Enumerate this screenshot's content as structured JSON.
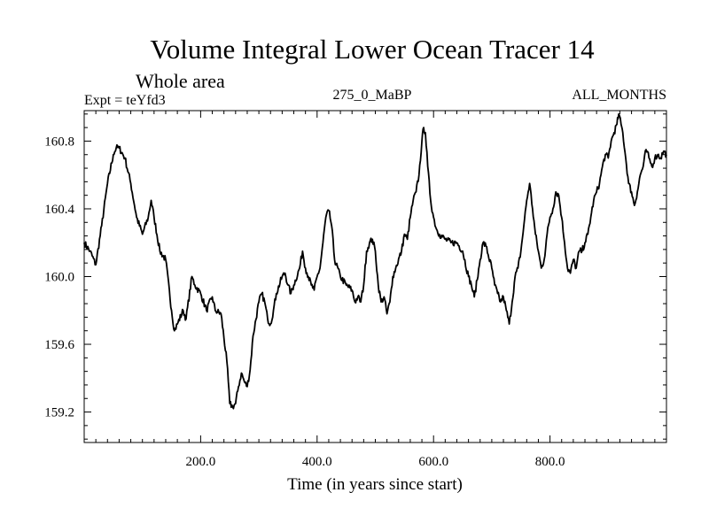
{
  "chart_data": {
    "type": "line",
    "title": "Volume Integral Lower Ocean Tracer 14",
    "subtitle": "Whole area",
    "experiment": "Expt = teYfd3",
    "period": "275_0_MaBP",
    "months": "ALL_MONTHS",
    "xlabel": "Time (in years since start)",
    "ylabel": "",
    "xlim": [
      0,
      1000
    ],
    "ylim": [
      159.02,
      160.98
    ],
    "xticks": [
      200,
      400,
      600,
      800
    ],
    "xtick_labels": [
      "200.0",
      "400.0",
      "600.0",
      "800.0"
    ],
    "yticks": [
      159.2,
      159.6,
      160.0,
      160.4,
      160.8
    ],
    "ytick_labels": [
      "159.2",
      "159.6",
      "160.0",
      "160.4",
      "160.8"
    ],
    "grid": false,
    "series": [
      {
        "name": "Tracer 14",
        "color": "#000000",
        "points": [
          [
            0,
            160.2
          ],
          [
            10,
            160.15
          ],
          [
            20,
            160.07
          ],
          [
            30,
            160.3
          ],
          [
            40,
            160.55
          ],
          [
            50,
            160.72
          ],
          [
            55,
            160.76
          ],
          [
            60,
            160.76
          ],
          [
            70,
            160.7
          ],
          [
            80,
            160.55
          ],
          [
            90,
            160.35
          ],
          [
            100,
            160.25
          ],
          [
            110,
            160.35
          ],
          [
            115,
            160.45
          ],
          [
            120,
            160.35
          ],
          [
            130,
            160.15
          ],
          [
            140,
            160.1
          ],
          [
            150,
            159.8
          ],
          [
            155,
            159.68
          ],
          [
            160,
            159.72
          ],
          [
            170,
            159.8
          ],
          [
            175,
            159.75
          ],
          [
            185,
            160.0
          ],
          [
            190,
            159.95
          ],
          [
            200,
            159.9
          ],
          [
            210,
            159.8
          ],
          [
            220,
            159.88
          ],
          [
            225,
            159.8
          ],
          [
            235,
            159.78
          ],
          [
            245,
            159.5
          ],
          [
            250,
            159.25
          ],
          [
            255,
            159.23
          ],
          [
            260,
            159.25
          ],
          [
            265,
            159.35
          ],
          [
            270,
            159.43
          ],
          [
            275,
            159.38
          ],
          [
            280,
            159.35
          ],
          [
            285,
            159.45
          ],
          [
            290,
            159.65
          ],
          [
            300,
            159.85
          ],
          [
            305,
            159.9
          ],
          [
            310,
            159.85
          ],
          [
            315,
            159.75
          ],
          [
            320,
            159.72
          ],
          [
            325,
            159.8
          ],
          [
            330,
            159.9
          ],
          [
            340,
            160.0
          ],
          [
            345,
            160.02
          ],
          [
            350,
            159.95
          ],
          [
            355,
            159.9
          ],
          [
            360,
            159.95
          ],
          [
            370,
            160.05
          ],
          [
            375,
            160.15
          ],
          [
            380,
            160.05
          ],
          [
            385,
            160.0
          ],
          [
            390,
            159.95
          ],
          [
            395,
            159.92
          ],
          [
            400,
            160.0
          ],
          [
            405,
            160.05
          ],
          [
            410,
            160.2
          ],
          [
            415,
            160.35
          ],
          [
            420,
            160.39
          ],
          [
            425,
            160.3
          ],
          [
            430,
            160.1
          ],
          [
            440,
            160.0
          ],
          [
            450,
            159.95
          ],
          [
            460,
            159.92
          ],
          [
            465,
            159.85
          ],
          [
            470,
            159.88
          ],
          [
            475,
            159.85
          ],
          [
            480,
            159.95
          ],
          [
            485,
            160.15
          ],
          [
            490,
            160.2
          ],
          [
            495,
            160.22
          ],
          [
            500,
            160.15
          ],
          [
            505,
            159.95
          ],
          [
            510,
            159.85
          ],
          [
            515,
            159.88
          ],
          [
            520,
            159.78
          ],
          [
            525,
            159.85
          ],
          [
            530,
            160.0
          ],
          [
            535,
            160.05
          ],
          [
            545,
            160.15
          ],
          [
            550,
            160.25
          ],
          [
            555,
            160.22
          ],
          [
            560,
            160.35
          ],
          [
            565,
            160.45
          ],
          [
            570,
            160.5
          ],
          [
            575,
            160.6
          ],
          [
            580,
            160.8
          ],
          [
            583,
            160.88
          ],
          [
            586,
            160.85
          ],
          [
            590,
            160.65
          ],
          [
            595,
            160.45
          ],
          [
            600,
            160.35
          ],
          [
            605,
            160.28
          ],
          [
            610,
            160.25
          ],
          [
            620,
            160.22
          ],
          [
            630,
            160.2
          ],
          [
            640,
            160.2
          ],
          [
            650,
            160.15
          ],
          [
            660,
            160.0
          ],
          [
            665,
            159.95
          ],
          [
            670,
            159.88
          ],
          [
            675,
            159.98
          ],
          [
            680,
            160.1
          ],
          [
            685,
            160.2
          ],
          [
            690,
            160.18
          ],
          [
            700,
            160.05
          ],
          [
            705,
            159.95
          ],
          [
            710,
            159.9
          ],
          [
            715,
            159.85
          ],
          [
            720,
            159.88
          ],
          [
            725,
            159.8
          ],
          [
            730,
            159.72
          ],
          [
            735,
            159.85
          ],
          [
            740,
            160.0
          ],
          [
            745,
            160.05
          ],
          [
            750,
            160.15
          ],
          [
            755,
            160.3
          ],
          [
            760,
            160.45
          ],
          [
            765,
            160.55
          ],
          [
            770,
            160.4
          ],
          [
            775,
            160.25
          ],
          [
            780,
            160.15
          ],
          [
            785,
            160.05
          ],
          [
            790,
            160.1
          ],
          [
            795,
            160.25
          ],
          [
            800,
            160.35
          ],
          [
            805,
            160.4
          ],
          [
            810,
            160.5
          ],
          [
            815,
            160.48
          ],
          [
            820,
            160.35
          ],
          [
            825,
            160.2
          ],
          [
            830,
            160.05
          ],
          [
            835,
            160.02
          ],
          [
            840,
            160.1
          ],
          [
            845,
            160.05
          ],
          [
            850,
            160.15
          ],
          [
            855,
            160.15
          ],
          [
            860,
            160.2
          ],
          [
            865,
            160.25
          ],
          [
            870,
            160.35
          ],
          [
            875,
            160.45
          ],
          [
            880,
            160.5
          ],
          [
            885,
            160.55
          ],
          [
            890,
            160.65
          ],
          [
            895,
            160.72
          ],
          [
            900,
            160.7
          ],
          [
            905,
            160.8
          ],
          [
            910,
            160.85
          ],
          [
            915,
            160.9
          ],
          [
            918,
            160.96
          ],
          [
            922,
            160.9
          ],
          [
            925,
            160.85
          ],
          [
            930,
            160.7
          ],
          [
            935,
            160.55
          ],
          [
            940,
            160.5
          ],
          [
            945,
            160.42
          ],
          [
            950,
            160.5
          ],
          [
            955,
            160.6
          ],
          [
            960,
            160.65
          ],
          [
            965,
            160.75
          ],
          [
            970,
            160.7
          ],
          [
            975,
            160.65
          ],
          [
            980,
            160.7
          ],
          [
            985,
            160.72
          ],
          [
            990,
            160.7
          ],
          [
            995,
            160.74
          ],
          [
            1000,
            160.72
          ]
        ]
      }
    ]
  }
}
